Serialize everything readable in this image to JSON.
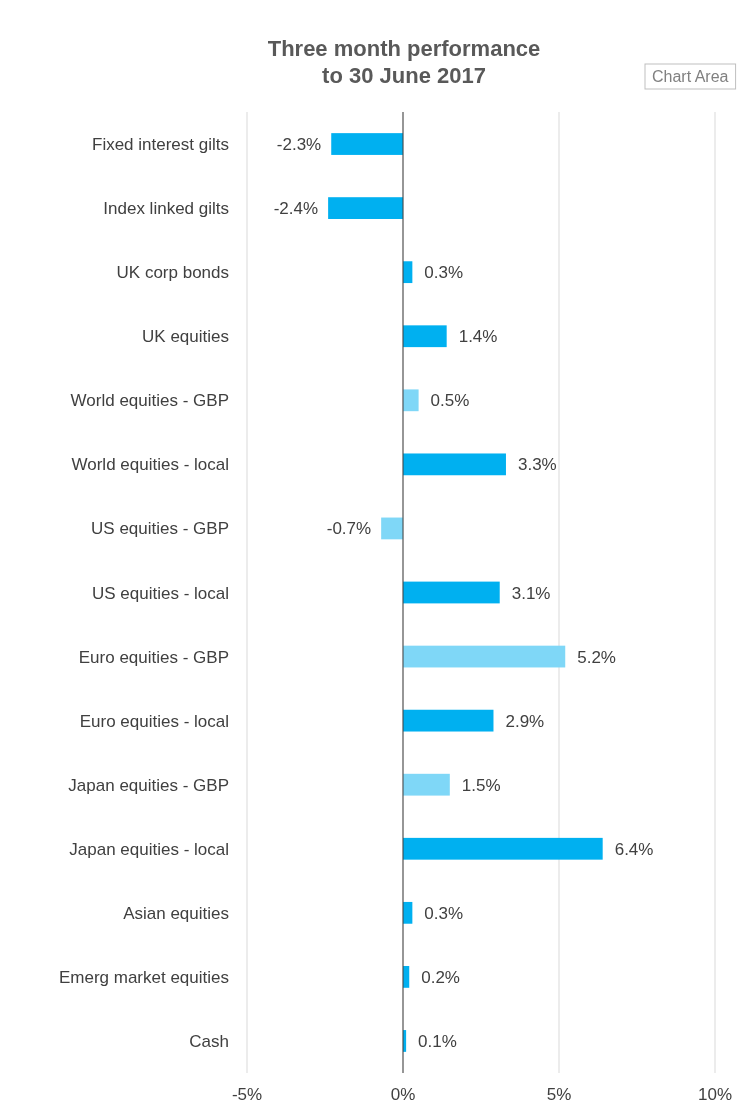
{
  "chart_data": {
    "type": "bar",
    "orientation": "horizontal",
    "title": "Three month performance\nto 30 June 2017",
    "categories": [
      "Fixed interest gilts",
      "Index linked gilts",
      "UK corp bonds",
      "UK equities",
      "World equities - GBP",
      "World equities - local",
      "US equities - GBP",
      "US equities - local",
      "Euro equities - GBP",
      "Euro equities - local",
      "Japan equities - GBP",
      "Japan equities - local",
      "Asian equities",
      "Emerg market equities",
      "Cash"
    ],
    "values": [
      -2.3,
      -2.4,
      0.3,
      1.4,
      0.5,
      3.3,
      -0.7,
      3.1,
      5.2,
      2.9,
      1.5,
      6.4,
      0.3,
      0.2,
      0.1
    ],
    "value_labels": [
      "-2.3%",
      "-2.4%",
      "0.3%",
      "1.4%",
      "0.5%",
      "3.3%",
      "-0.7%",
      "3.1%",
      "5.2%",
      "2.9%",
      "1.5%",
      "6.4%",
      "0.3%",
      "0.2%",
      "0.1%"
    ],
    "colors": [
      "#00b0f0",
      "#00b0f0",
      "#00b0f0",
      "#00b0f0",
      "#7fd7f7",
      "#00b0f0",
      "#7fd7f7",
      "#00b0f0",
      "#7fd7f7",
      "#00b0f0",
      "#7fd7f7",
      "#00b0f0",
      "#00b0f0",
      "#00b0f0",
      "#00b0f0"
    ],
    "xlim": [
      -5,
      10
    ],
    "xticks": [
      {
        "value": -5,
        "label": "-5%"
      },
      {
        "value": 0,
        "label": "0%"
      },
      {
        "value": 5,
        "label": "5%"
      },
      {
        "value": 10,
        "label": "10%"
      }
    ],
    "grid": "x",
    "annotations": [
      "Chart Area"
    ]
  }
}
